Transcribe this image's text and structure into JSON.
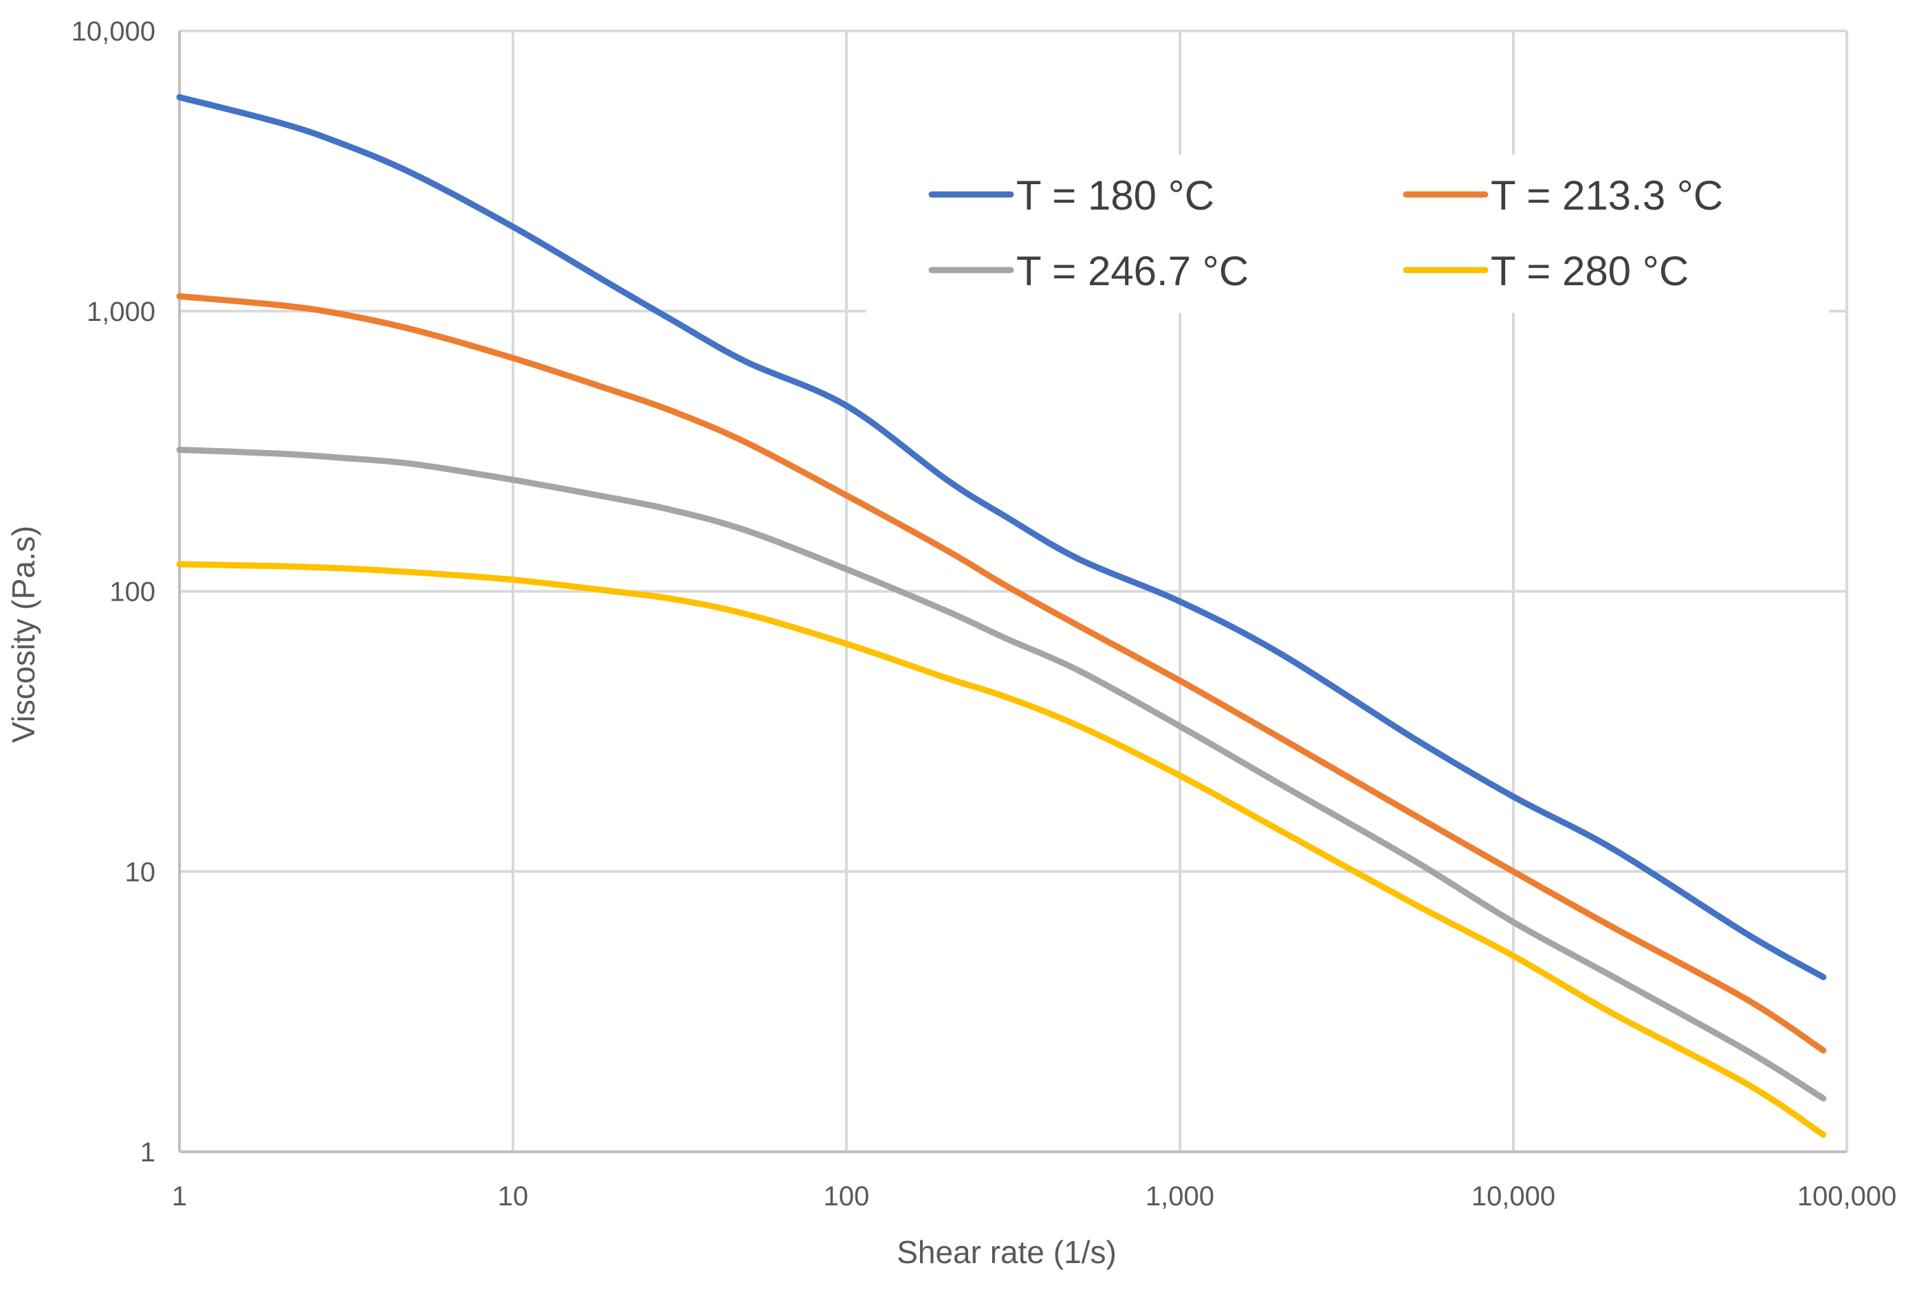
{
  "chart_data": {
    "type": "line",
    "title": "",
    "xlabel": "Shear rate (1/s)",
    "ylabel": "Viscosity (Pa.s)",
    "xscale": "log",
    "yscale": "log",
    "xlim": [
      1,
      100000
    ],
    "ylim": [
      1,
      10000
    ],
    "x_ticks": [
      1,
      10,
      100,
      1000,
      10000,
      100000
    ],
    "x_tick_labels": [
      "1",
      "10",
      "100",
      "1,000",
      "10,000",
      "100,000"
    ],
    "y_ticks": [
      1,
      10,
      100,
      1000,
      10000
    ],
    "y_tick_labels": [
      "1",
      "10",
      "100",
      "1,000",
      "10,000"
    ],
    "grid": true,
    "legend_position": "top-right",
    "series": [
      {
        "name": "T = 180 °C",
        "color": "#4472C4",
        "x": [
          1,
          2,
          3,
          5,
          10,
          20,
          30,
          50,
          100,
          200,
          300,
          500,
          1000,
          2000,
          5000,
          10000,
          20000,
          50000,
          85000
        ],
        "y": [
          5800,
          4700,
          4000,
          3100,
          2000,
          1230,
          930,
          660,
          460,
          250,
          185,
          130,
          92,
          60,
          30,
          18.5,
          12,
          6,
          4.2
        ]
      },
      {
        "name": "T = 213.3 °C",
        "color": "#ED7D31",
        "x": [
          1,
          2,
          3,
          5,
          10,
          20,
          30,
          50,
          100,
          200,
          300,
          500,
          1000,
          2000,
          5000,
          10000,
          20000,
          50000,
          85000
        ],
        "y": [
          1130,
          1050,
          980,
          860,
          680,
          520,
          440,
          340,
          220,
          140,
          105,
          75,
          48,
          30,
          16,
          10,
          6.3,
          3.5,
          2.3
        ]
      },
      {
        "name": "T = 246.7 °C",
        "color": "#A5A5A5",
        "x": [
          1,
          2,
          3,
          5,
          10,
          20,
          30,
          50,
          100,
          200,
          300,
          500,
          1000,
          2000,
          5000,
          10000,
          20000,
          50000,
          85000
        ],
        "y": [
          320,
          310,
          300,
          285,
          250,
          215,
          195,
          165,
          120,
          85,
          68,
          52,
          33,
          20.5,
          11,
          6.6,
          4.2,
          2.3,
          1.55
        ]
      },
      {
        "name": "T = 280 °C",
        "color": "#FFC000",
        "x": [
          1,
          2,
          3,
          5,
          10,
          20,
          30,
          50,
          100,
          200,
          300,
          500,
          1000,
          2000,
          5000,
          10000,
          20000,
          50000,
          85000
        ],
        "y": [
          125,
          123,
          121,
          117,
          110,
          100,
          94,
          83,
          65,
          49,
          42,
          33,
          22,
          14,
          7.7,
          5,
          3.1,
          1.75,
          1.15
        ]
      }
    ]
  }
}
